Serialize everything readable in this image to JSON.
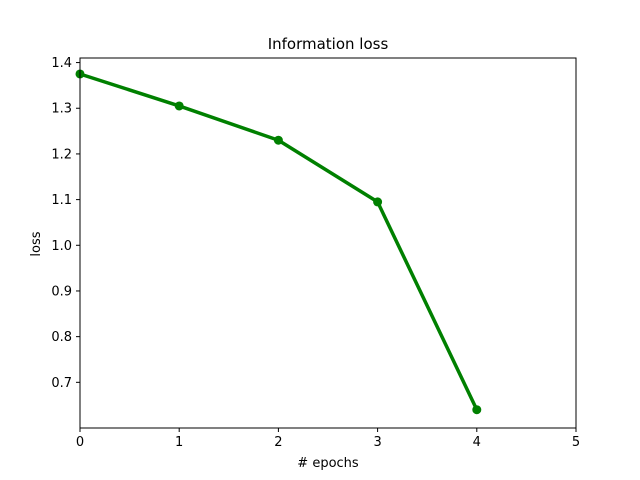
{
  "chart_data": {
    "type": "line",
    "title": "Information loss",
    "xlabel": "# epochs",
    "ylabel": "loss",
    "xlim": [
      0,
      5
    ],
    "ylim": [
      0.6,
      1.41
    ],
    "xticks": [
      "0",
      "1",
      "2",
      "3",
      "4",
      "5"
    ],
    "yticks": [
      "0.7",
      "0.8",
      "0.9",
      "1.0",
      "1.1",
      "1.2",
      "1.3",
      "1.4"
    ],
    "grid": false,
    "series": [
      {
        "color": "#008000",
        "marker": "circle",
        "x": [
          0,
          1,
          2,
          3,
          4
        ],
        "y": [
          1.375,
          1.305,
          1.23,
          1.095,
          0.64
        ]
      }
    ]
  }
}
